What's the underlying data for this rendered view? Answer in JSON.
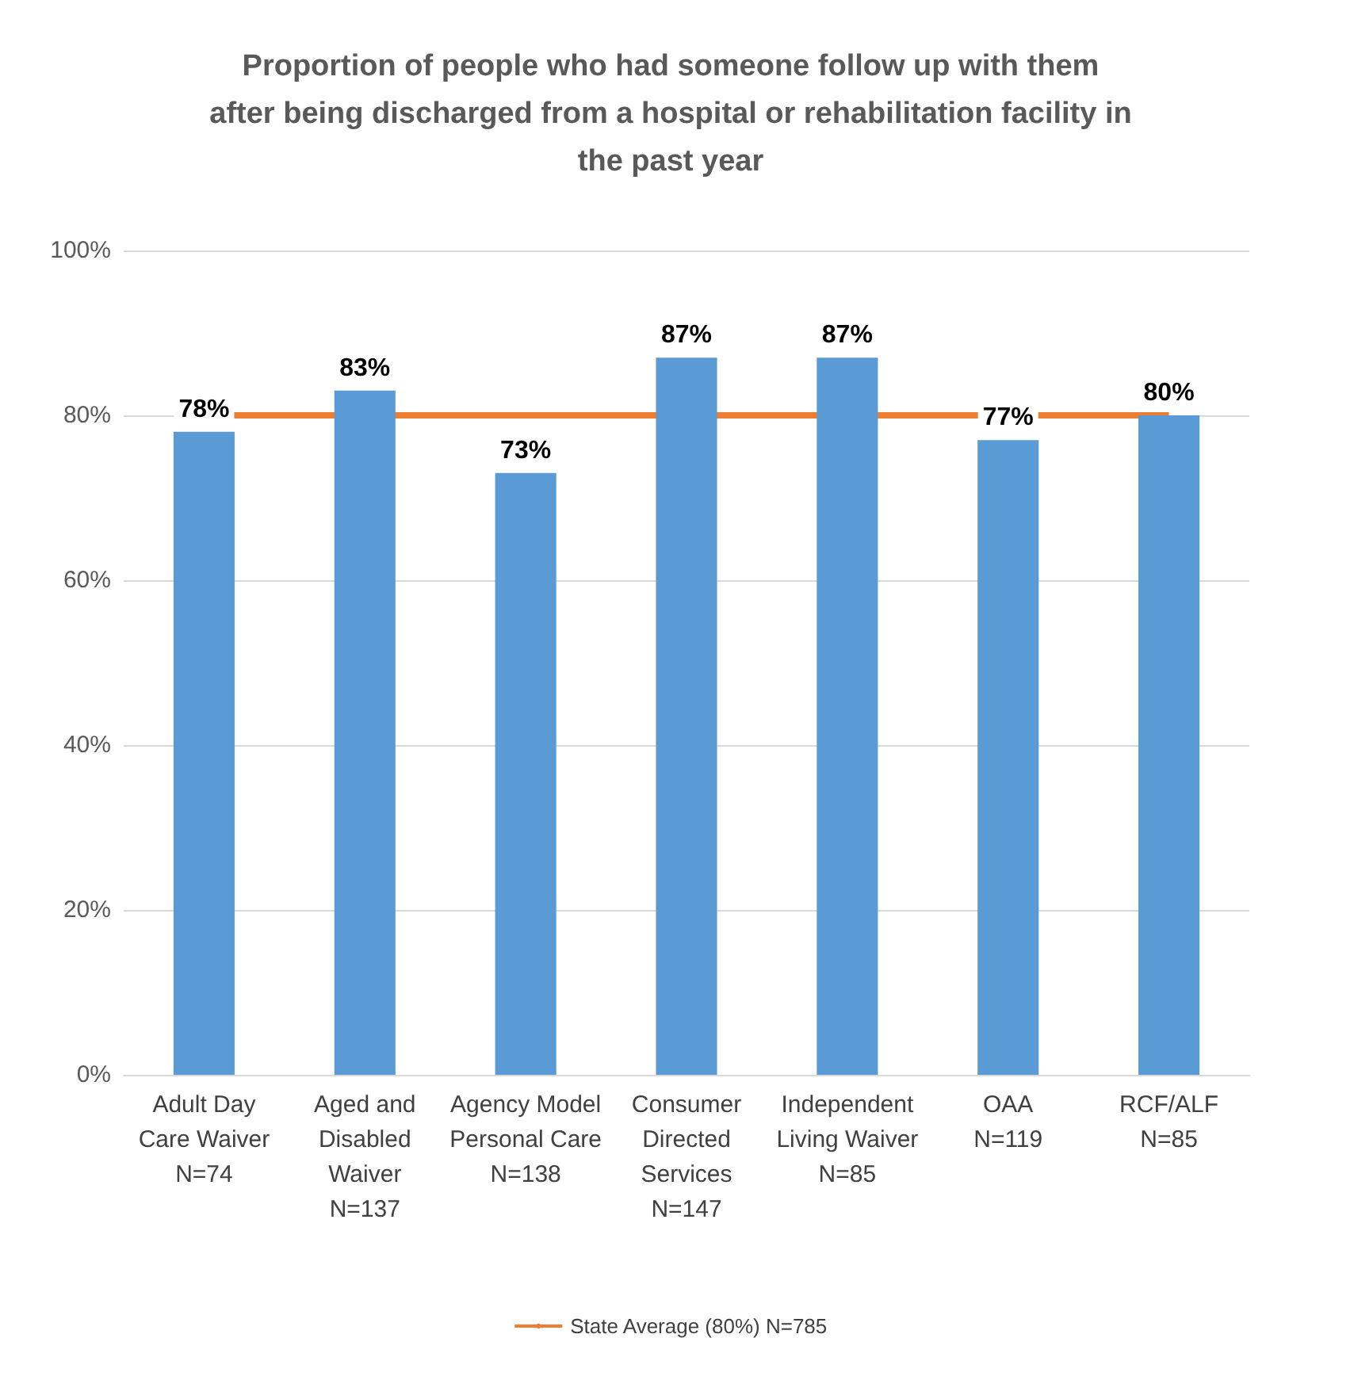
{
  "chart_data": {
    "type": "bar",
    "title": "Proportion of people who had someone follow up with them\nafter being discharged from a hospital or rehabilitation facility in\nthe past year",
    "categories": [
      "Adult Day\nCare Waiver\nN=74",
      "Aged and\nDisabled\nWaiver\nN=137",
      "Agency Model\nPersonal Care\nN=138",
      "Consumer\nDirected\nServices\nN=147",
      "Independent\nLiving Waiver\nN=85",
      "OAA\nN=119",
      "RCF/ALF\nN=85"
    ],
    "values": [
      78,
      83,
      73,
      87,
      87,
      77,
      80
    ],
    "value_labels": [
      "78%",
      "83%",
      "73%",
      "87%",
      "87%",
      "77%",
      "80%"
    ],
    "color": "#5b9bd5",
    "ylim": [
      0,
      100
    ],
    "yticks": [
      {
        "value": 0,
        "label": "0%"
      },
      {
        "value": 20,
        "label": "20%"
      },
      {
        "value": 40,
        "label": "40%"
      },
      {
        "value": 60,
        "label": "60%"
      },
      {
        "value": 80,
        "label": "80%"
      },
      {
        "value": 100,
        "label": "100%"
      }
    ],
    "ref_lines": [
      {
        "axis": "y",
        "value": 80,
        "label": "State Average (80%) N=785",
        "color": "#ed7d31"
      }
    ],
    "grid": "y",
    "legend": "bottom"
  }
}
